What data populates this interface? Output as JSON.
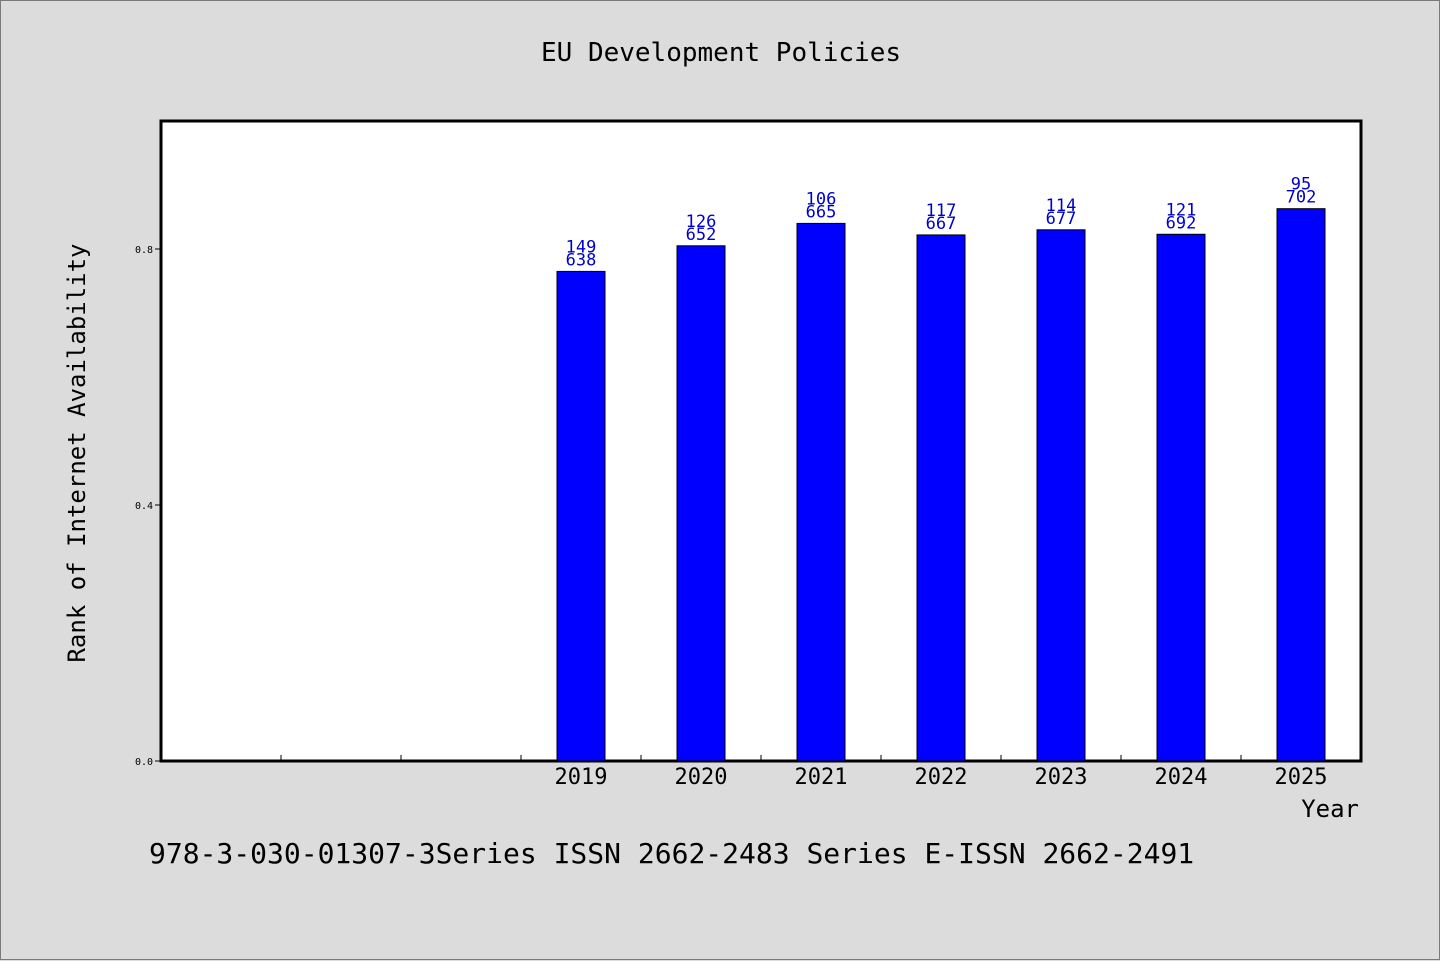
{
  "chart_data": {
    "type": "bar",
    "title": "EU Development Policies",
    "xlabel": "Year",
    "ylabel": "Rank of Internet Availability",
    "categories": [
      "",
      "",
      "",
      "2019",
      "2020",
      "2021",
      "2022",
      "2023",
      "2024",
      "2025"
    ],
    "series": [
      {
        "values": [
          null,
          null,
          null,
          0.765,
          0.805,
          0.84,
          0.822,
          0.83,
          0.823,
          0.863
        ],
        "labels_top": [
          "",
          "",
          "",
          "149",
          "126",
          "106",
          "117",
          "114",
          "121",
          "95"
        ],
        "labels_bottom": [
          "",
          "",
          "",
          "638",
          "652",
          "665",
          "667",
          "677",
          "692",
          "702"
        ],
        "color": "#0000ff"
      }
    ],
    "ylim": [
      0,
      1.0
    ],
    "yticks": [
      0.0,
      0.4,
      0.8
    ],
    "ytick_labels": [
      "0.0",
      "0.4",
      "0.8"
    ],
    "grid": false,
    "legend": "none"
  },
  "footer_text": "978-3-030-01307-3Series ISSN 2662-2483 Series E-ISSN 2662-2491"
}
